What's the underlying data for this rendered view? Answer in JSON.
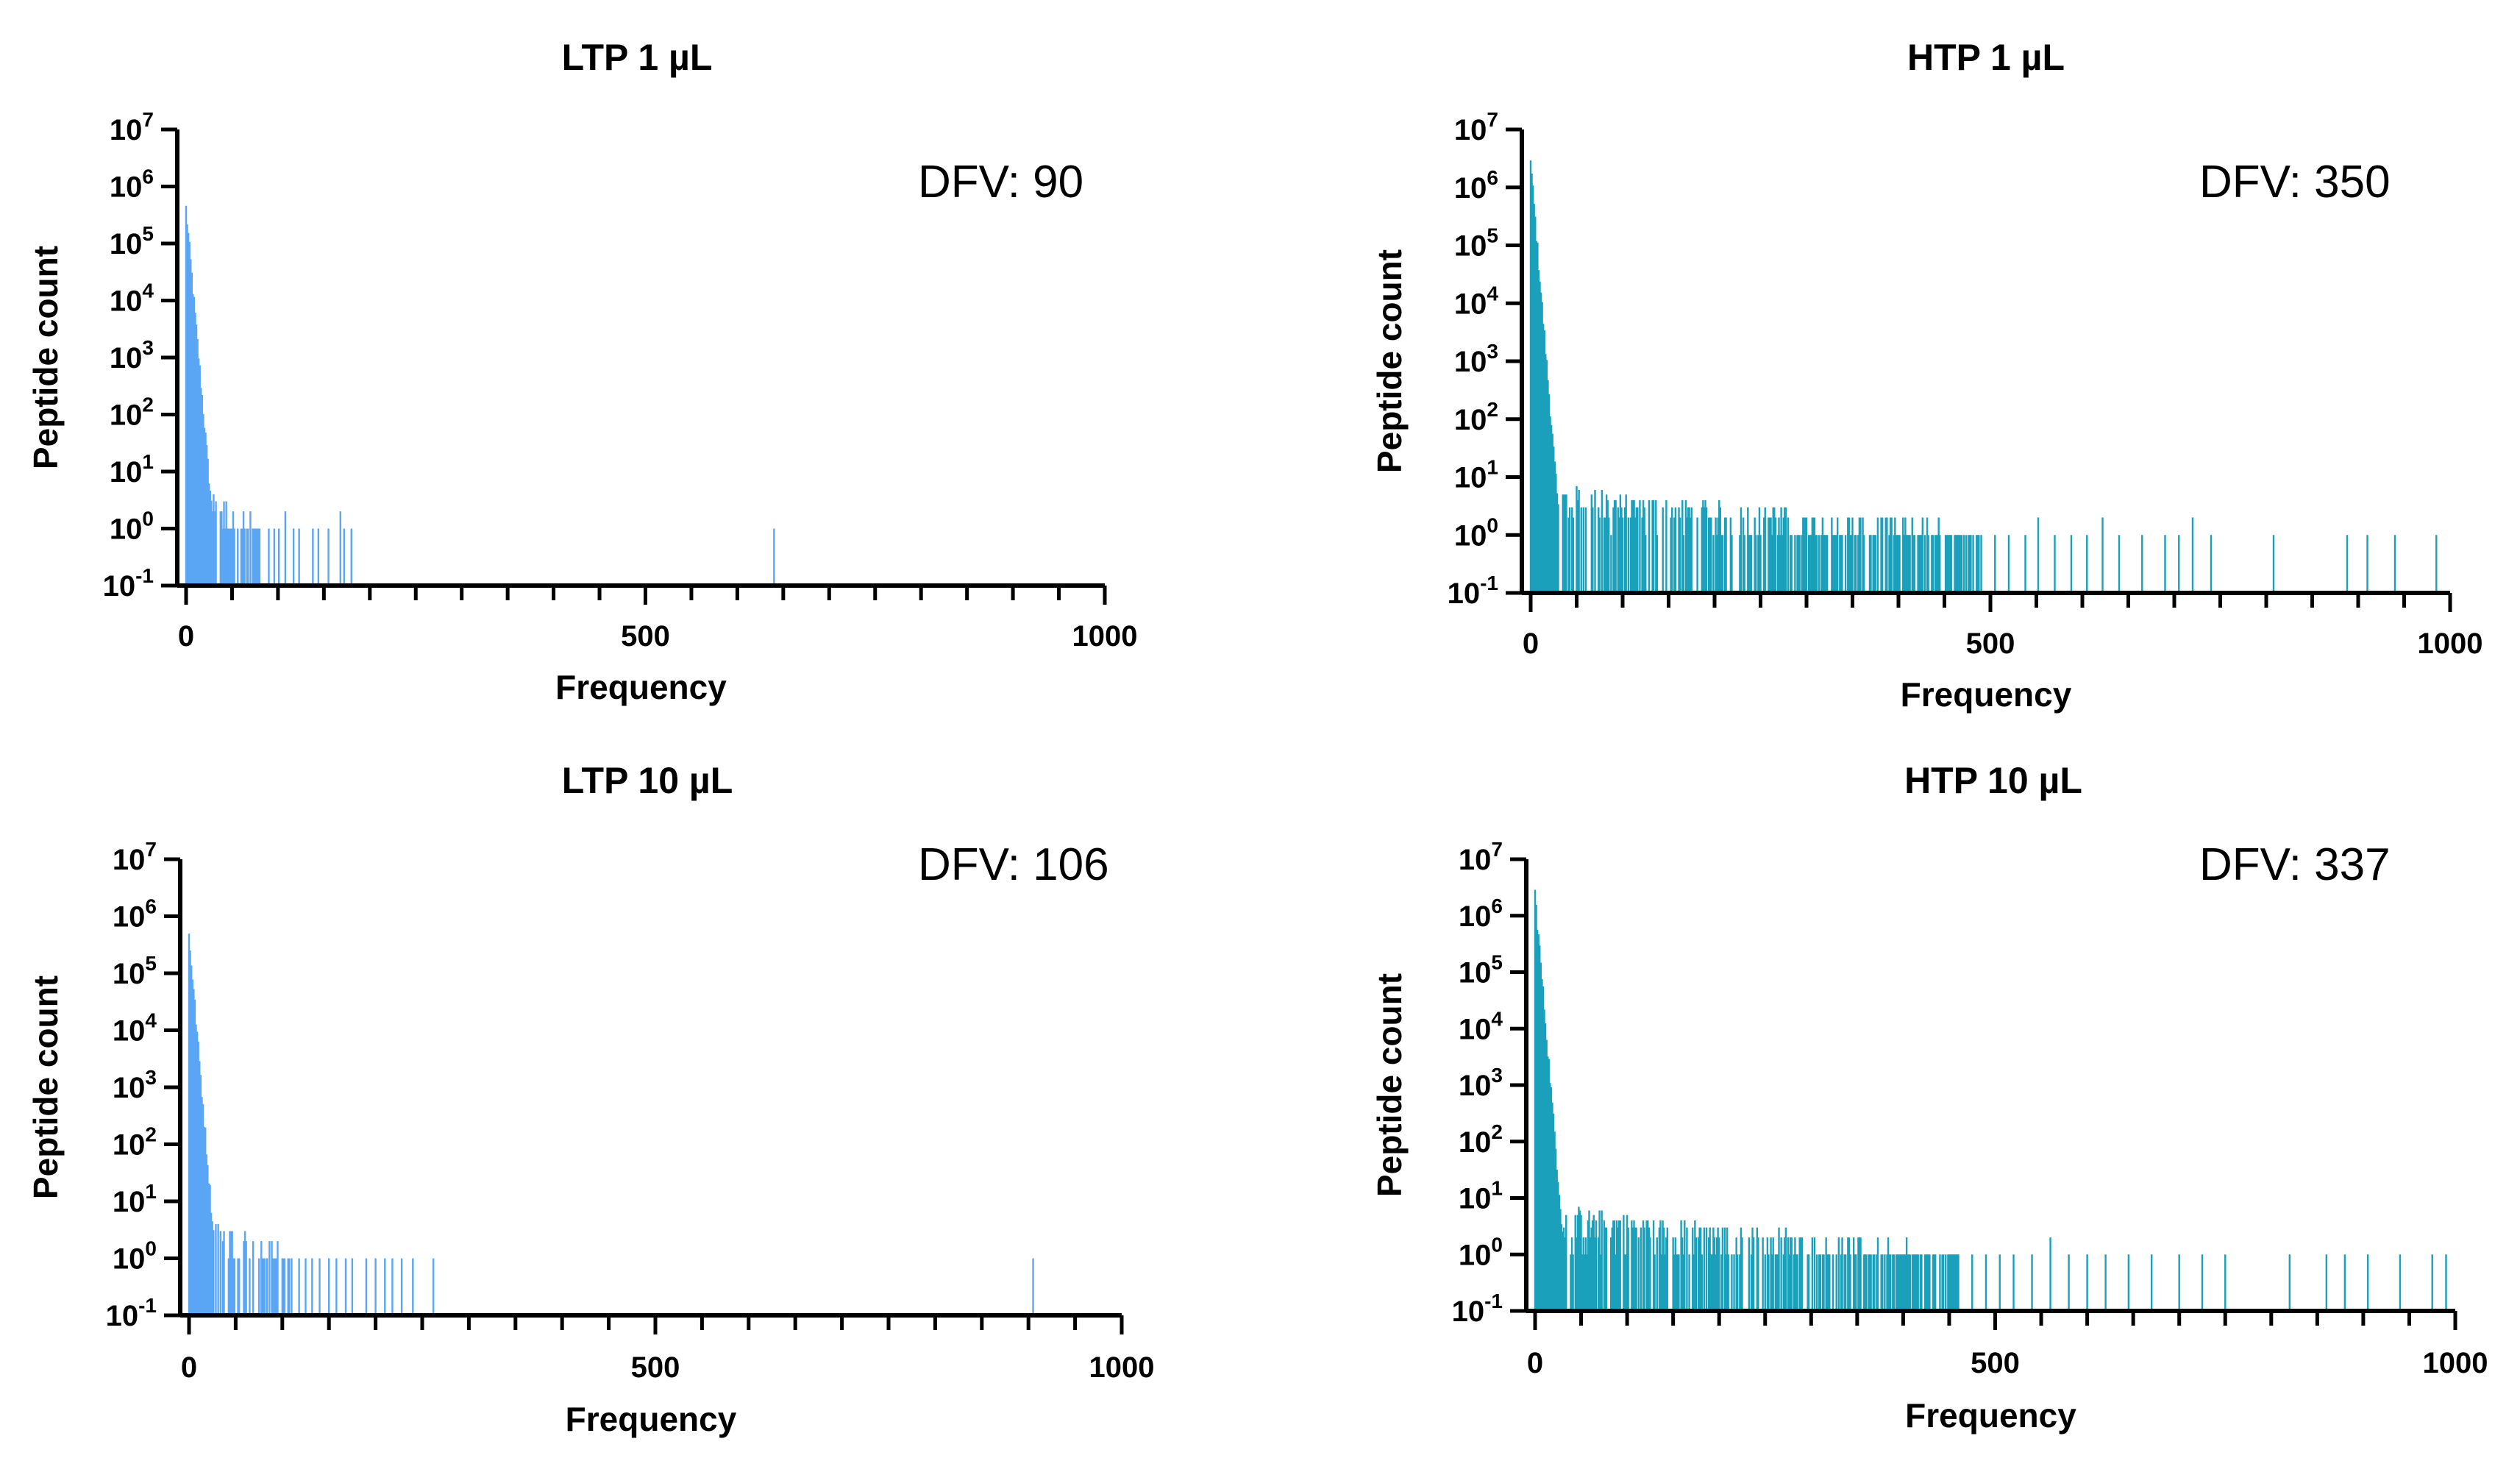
{
  "chart_data": [
    {
      "type": "bar",
      "title": "LTP 1 µL",
      "xlabel": "Frequency",
      "ylabel": "Peptide count",
      "annotation": "DFV: 90",
      "color": "#5aa6f5",
      "xlim": [
        0,
        1000
      ],
      "x_ticks": [
        0,
        500,
        1000
      ],
      "x_tick_labels": [
        "0",
        "500",
        "1000"
      ],
      "ylim_log10": [
        -1,
        7
      ],
      "y_ticks": [
        "10-1",
        "100",
        "101",
        "102",
        "103",
        "104",
        "105",
        "106",
        "107"
      ],
      "y_tick_base": "10",
      "y_tick_exponents": [
        "-1",
        "0",
        "1",
        "2",
        "3",
        "4",
        "5",
        "6",
        "7"
      ],
      "max_peak": 420000,
      "decay": 5.3,
      "noise_end": 80,
      "sparse_bars": [
        90,
        96,
        101,
        108,
        117,
        123,
        138,
        144,
        155,
        168,
        172,
        180,
        640
      ],
      "sparse_values": [
        1,
        1,
        1,
        2,
        1,
        1,
        1,
        1,
        1,
        2,
        1,
        1,
        1
      ]
    },
    {
      "type": "bar",
      "title": "HTP 1 µL",
      "xlabel": "Frequency",
      "ylabel": "Peptide count",
      "annotation": "DFV: 350",
      "color": "#1aa0ba",
      "xlim": [
        0,
        1000
      ],
      "x_ticks": [
        0,
        500,
        1000
      ],
      "x_tick_labels": [
        "0",
        "500",
        "1000"
      ],
      "ylim_log10": [
        -1,
        7
      ],
      "y_ticks": [
        "10-1",
        "100",
        "101",
        "102",
        "103",
        "104",
        "105",
        "106",
        "107"
      ],
      "y_tick_base": "10",
      "y_tick_exponents": [
        "-1",
        "0",
        "1",
        "2",
        "3",
        "4",
        "5",
        "6",
        "7"
      ],
      "max_peak": 2800000,
      "decay": 5.0,
      "noise_end": 490,
      "sparse_bars": [
        505,
        520,
        538,
        552,
        570,
        588,
        605,
        622,
        640,
        665,
        690,
        705,
        720,
        740,
        808,
        888,
        910,
        940,
        985
      ],
      "sparse_values": [
        1,
        1,
        1,
        2,
        1,
        1,
        1,
        2,
        1,
        1,
        1,
        1,
        2,
        1,
        1,
        1,
        1,
        1,
        1
      ]
    },
    {
      "type": "bar",
      "title": "LTP 10 µL",
      "xlabel": "Frequency",
      "ylabel": "Peptide count",
      "annotation": "DFV: 106",
      "color": "#5aa6f5",
      "xlim": [
        0,
        1000
      ],
      "x_ticks": [
        0,
        500,
        1000
      ],
      "x_tick_labels": [
        "0",
        "500",
        "1000"
      ],
      "ylim_log10": [
        -1,
        7
      ],
      "y_ticks": [
        "10-1",
        "100",
        "101",
        "102",
        "103",
        "104",
        "105",
        "106",
        "107"
      ],
      "y_tick_base": "10",
      "y_tick_exponents": [
        "-1",
        "0",
        "1",
        "2",
        "3",
        "4",
        "5",
        "6",
        "7"
      ],
      "max_peak": 500000,
      "decay": 5.0,
      "noise_end": 110,
      "sparse_bars": [
        118,
        125,
        132,
        140,
        150,
        158,
        168,
        175,
        190,
        200,
        210,
        218,
        228,
        240,
        262,
        905
      ],
      "sparse_values": [
        1,
        1,
        1,
        1,
        1,
        1,
        1,
        1,
        1,
        1,
        1,
        1,
        1,
        1,
        1,
        1
      ]
    },
    {
      "type": "bar",
      "title": "HTP 10 µL",
      "xlabel": "Frequency",
      "ylabel": "Peptide count",
      "annotation": "DFV: 337",
      "color": "#1aa0ba",
      "xlim": [
        0,
        1000
      ],
      "x_ticks": [
        0,
        500,
        1000
      ],
      "x_tick_labels": [
        "0",
        "500",
        "1000"
      ],
      "ylim_log10": [
        -1,
        7
      ],
      "y_ticks": [
        "10-1",
        "100",
        "101",
        "102",
        "103",
        "104",
        "105",
        "106",
        "107"
      ],
      "y_tick_base": "10",
      "y_tick_exponents": [
        "-1",
        "0",
        "1",
        "2",
        "3",
        "4",
        "5",
        "6",
        "7"
      ],
      "max_peak": 2500000,
      "decay": 5.0,
      "noise_end": 460,
      "sparse_bars": [
        475,
        490,
        505,
        520,
        540,
        560,
        580,
        600,
        620,
        645,
        670,
        700,
        725,
        750,
        820,
        860,
        880,
        905,
        940,
        975,
        990
      ],
      "sparse_values": [
        1,
        1,
        1,
        1,
        1,
        2,
        1,
        1,
        1,
        1,
        1,
        1,
        1,
        1,
        1,
        1,
        1,
        1,
        1,
        1,
        1
      ]
    }
  ]
}
